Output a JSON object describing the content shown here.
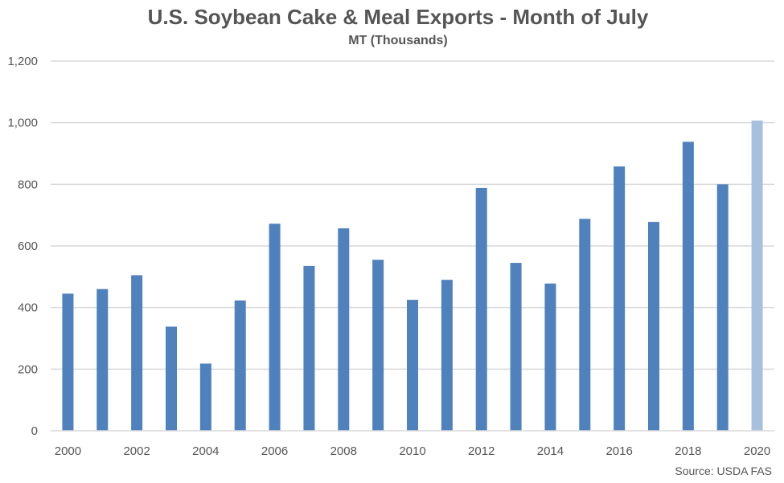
{
  "chart_data": {
    "type": "bar",
    "title": "U.S. Soybean Cake & Meal Exports - Month of July",
    "subtitle": "MT (Thousands)",
    "source": "Source: USDA FAS",
    "categories": [
      "2000",
      "2001",
      "2002",
      "2003",
      "2004",
      "2005",
      "2006",
      "2007",
      "2008",
      "2009",
      "2010",
      "2011",
      "2012",
      "2013",
      "2014",
      "2015",
      "2016",
      "2017",
      "2018",
      "2019",
      "2020"
    ],
    "x_tick_labels": [
      "2000",
      "2002",
      "2004",
      "2006",
      "2008",
      "2010",
      "2012",
      "2014",
      "2016",
      "2018",
      "2020"
    ],
    "values": [
      445,
      460,
      505,
      338,
      218,
      423,
      672,
      535,
      657,
      555,
      425,
      490,
      788,
      545,
      478,
      688,
      858,
      678,
      938,
      800,
      1007
    ],
    "y_ticks": [
      "0",
      "200",
      "400",
      "600",
      "800",
      "1,000",
      "1,200"
    ],
    "ylim": [
      0,
      1200
    ],
    "grid": true,
    "legend": "none",
    "colors": {
      "bar": "#4f81bd",
      "bar_highlight": "#a7c0de",
      "grid": "#d9d9d9"
    },
    "highlight_index": 20
  }
}
